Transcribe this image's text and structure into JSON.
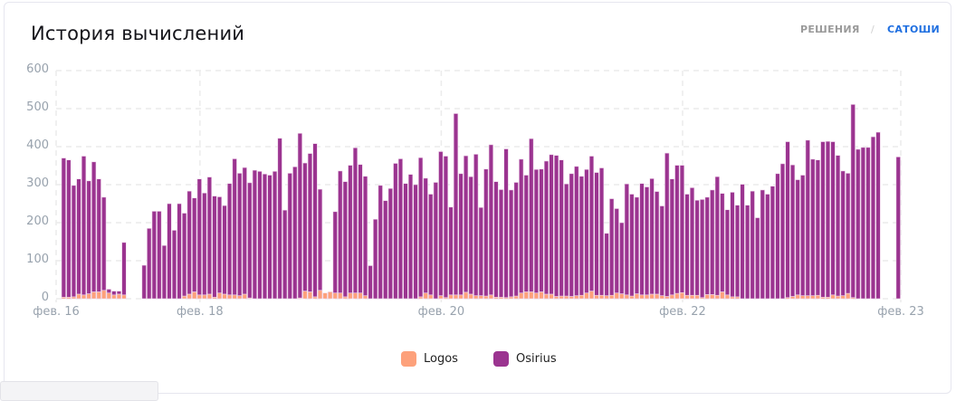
{
  "header": {
    "title": "История вычислений",
    "toggle_solutions": "РЕШЕНИЯ",
    "toggle_separator": "/",
    "toggle_satoshi": "САТОШИ",
    "active_toggle": "САТОШИ"
  },
  "colors": {
    "logos": "#fda17b",
    "osirius": "#9b3490",
    "accent": "#1f6fe0"
  },
  "chart_data": {
    "type": "bar",
    "stacked": true,
    "title": "История вычислений",
    "xlabel": "",
    "ylabel": "",
    "ylim": [
      0,
      600
    ],
    "y_ticks": [
      "0",
      "100",
      "200",
      "300",
      "400",
      "500",
      "600"
    ],
    "x_unit": "hour slot",
    "x_ticks": [
      {
        "label": "фев. 16",
        "slot": 0
      },
      {
        "label": "фев. 18",
        "slot": 28.6
      },
      {
        "label": "фев. 20",
        "slot": 76.6
      },
      {
        "label": "фев. 22",
        "slot": 124.6
      },
      {
        "label": "фев. 23",
        "slot": 168
      }
    ],
    "grid": true,
    "legend_position": "bottom-center",
    "series": [
      {
        "name": "Logos",
        "values": [
          null,
          4,
          4,
          5,
          12,
          10,
          13,
          18,
          18,
          22,
          15,
          10,
          12,
          10,
          null,
          null,
          null,
          0,
          0,
          0,
          0,
          0,
          0,
          0,
          0,
          7,
          12,
          18,
          10,
          10,
          12,
          4,
          15,
          12,
          10,
          10,
          8,
          12,
          2,
          0,
          0,
          0,
          0,
          0,
          0,
          0,
          0,
          0,
          2,
          20,
          18,
          5,
          22,
          15,
          18,
          15,
          15,
          5,
          15,
          15,
          15,
          8,
          0,
          0,
          0,
          0,
          0,
          0,
          0,
          0,
          0,
          0,
          5,
          15,
          10,
          0,
          8,
          3,
          10,
          10,
          10,
          17,
          12,
          8,
          8,
          7,
          10,
          4,
          4,
          3,
          5,
          7,
          15,
          18,
          18,
          15,
          18,
          12,
          12,
          6,
          7,
          7,
          6,
          8,
          9,
          15,
          20,
          9,
          9,
          8,
          9,
          15,
          13,
          10,
          7,
          13,
          10,
          10,
          12,
          12,
          8,
          6,
          10,
          14,
          16,
          9,
          9,
          9,
          3,
          11,
          11,
          9,
          18,
          10,
          5,
          5,
          0,
          0,
          0,
          0,
          0,
          0,
          0,
          0,
          0,
          3,
          6,
          10,
          8,
          8,
          8,
          9,
          4,
          4,
          10,
          7,
          8,
          14,
          3,
          0,
          0,
          0,
          0,
          0,
          null,
          null,
          null,
          0
        ]
      },
      {
        "name": "Osirius",
        "values": [
          null,
          366,
          361,
          293,
          303,
          365,
          297,
          342,
          297,
          245,
          10,
          10,
          8,
          138,
          null,
          null,
          null,
          88,
          185,
          230,
          230,
          140,
          250,
          180,
          250,
          218,
          271,
          247,
          305,
          268,
          308,
          266,
          253,
          233,
          293,
          358,
          322,
          333,
          303,
          338,
          335,
          328,
          325,
          335,
          422,
          233,
          330,
          347,
          433,
          337,
          364,
          403,
          266,
          0,
          0,
          214,
          321,
          303,
          336,
          382,
          338,
          314,
          87,
          209,
          298,
          258,
          290,
          356,
          368,
          303,
          327,
          300,
          366,
          302,
          265,
          306,
          379,
          372,
          231,
          477,
          319,
          359,
          309,
          372,
          232,
          334,
          395,
          304,
          283,
          391,
          281,
          299,
          352,
          307,
          403,
          325,
          323,
          350,
          367,
          371,
          358,
          295,
          323,
          340,
          313,
          325,
          355,
          323,
          335,
          164,
          254,
          222,
          187,
          292,
          268,
          254,
          293,
          284,
          304,
          270,
          236,
          377,
          305,
          337,
          335,
          266,
          283,
          250,
          258,
          256,
          275,
          312,
          259,
          224,
          275,
          241,
          301,
          246,
          283,
          213,
          286,
          275,
          296,
          329,
          355,
          410,
          346,
          303,
          317,
          409,
          359,
          356,
          409,
          410,
          403,
          370,
          328,
          316,
          508,
          393,
          398,
          398,
          426,
          438,
          null,
          null,
          null,
          373
        ]
      }
    ]
  }
}
